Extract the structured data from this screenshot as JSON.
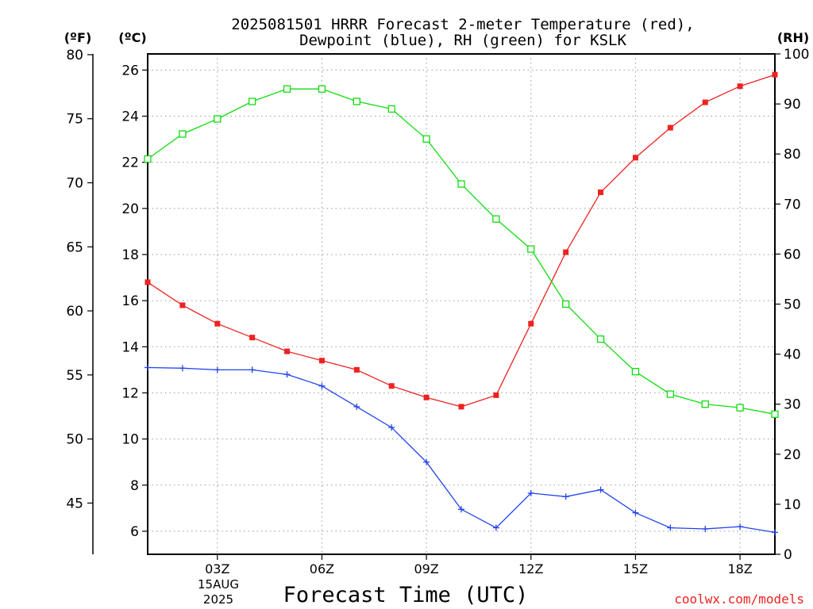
{
  "chart_data": {
    "type": "line",
    "title_line1": "2025081501 HRRR Forecast 2-meter Temperature (red),",
    "title_line2": "Dewpoint (blue), RH (green) for KSLK",
    "xlabel": "Forecast Time (UTC)",
    "date_label_day": "15AUG",
    "date_label_year": "2025",
    "watermark": "coolwx.com/models",
    "x_hours": [
      1,
      2,
      3,
      4,
      5,
      6,
      7,
      8,
      9,
      10,
      11,
      12,
      13,
      14,
      15,
      16,
      17,
      18,
      19
    ],
    "xlim": [
      1,
      19
    ],
    "x_ticks": [
      {
        "hour": 3,
        "label": "03Z"
      },
      {
        "hour": 6,
        "label": "06Z"
      },
      {
        "hour": 9,
        "label": "09Z"
      },
      {
        "hour": 12,
        "label": "12Z"
      },
      {
        "hour": 15,
        "label": "15Z"
      },
      {
        "hour": 18,
        "label": "18Z"
      }
    ],
    "axes": {
      "celsius": {
        "label": "(ºC)",
        "lim": [
          5,
          26.7
        ],
        "ticks": [
          6,
          8,
          10,
          12,
          14,
          16,
          18,
          20,
          22,
          24,
          26
        ]
      },
      "fahrenheit": {
        "label": "(ºF)",
        "ticks": [
          45,
          50,
          55,
          60,
          65,
          70,
          75,
          80
        ]
      },
      "rh": {
        "label": "(RH)",
        "lim": [
          0,
          100
        ],
        "ticks": [
          0,
          10,
          20,
          30,
          40,
          50,
          60,
          70,
          80,
          90,
          100
        ]
      }
    },
    "grid": true,
    "series": [
      {
        "name": "Temperature (red)",
        "axis": "celsius",
        "color": "#ee2222",
        "marker": "filled-square",
        "values": [
          16.8,
          15.8,
          15.0,
          14.4,
          13.8,
          13.4,
          13.0,
          12.3,
          11.8,
          11.4,
          11.9,
          15.0,
          18.1,
          20.7,
          22.2,
          23.5,
          24.6,
          25.3,
          25.8
        ]
      },
      {
        "name": "Dewpoint (blue)",
        "axis": "celsius",
        "color": "#2244ee",
        "marker": "plus",
        "values": [
          13.1,
          13.07,
          13.0,
          13.0,
          12.8,
          12.3,
          11.4,
          10.5,
          9.0,
          6.95,
          6.15,
          7.65,
          7.5,
          7.8,
          6.8,
          6.15,
          6.1,
          6.2,
          5.95
        ]
      },
      {
        "name": "RH (green)",
        "axis": "rh",
        "color": "#11dd11",
        "marker": "open-square",
        "values": [
          79,
          84,
          87,
          90.5,
          93,
          93,
          90.5,
          89,
          83,
          74,
          67,
          61,
          50,
          43,
          36.5,
          32,
          30,
          29.3,
          28
        ]
      }
    ]
  }
}
